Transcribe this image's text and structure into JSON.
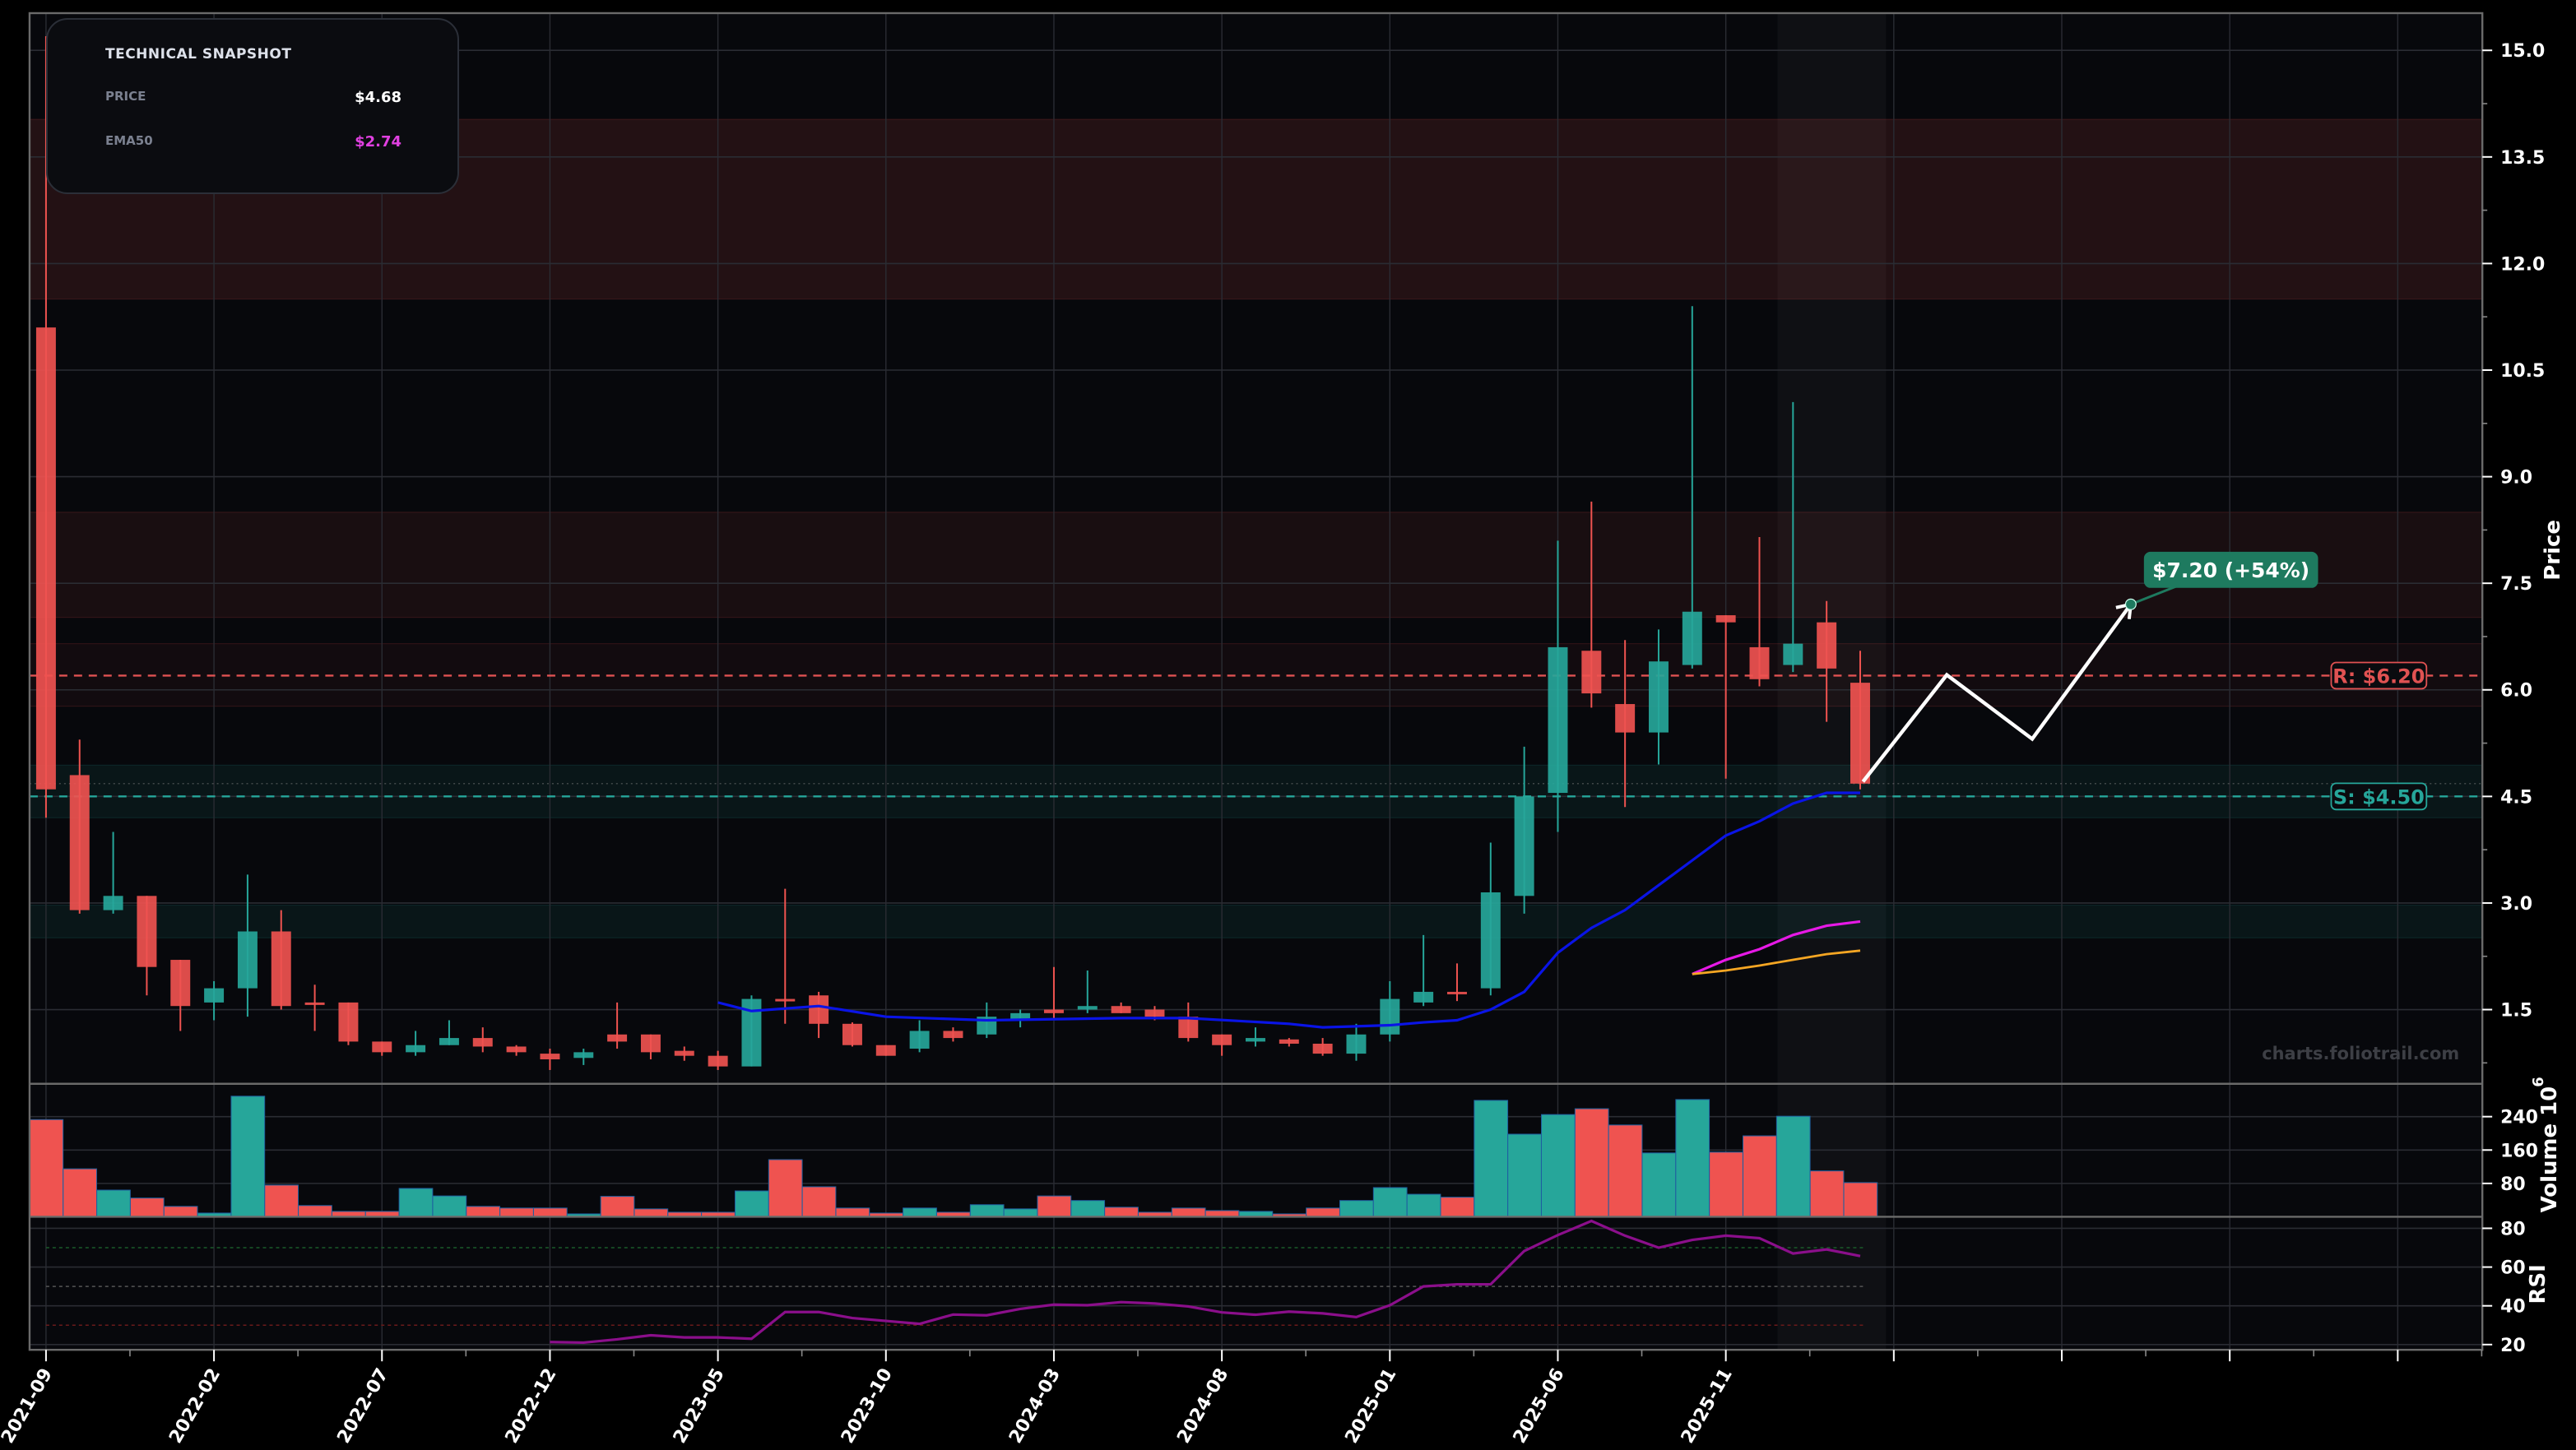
{
  "snapshot": {
    "title": "TECHNICAL SNAPSHOT",
    "rows": [
      {
        "label": "PRICE",
        "value": "$4.68",
        "color": "#ffffff"
      },
      {
        "label": "EMA50",
        "value": "$2.74",
        "color": "#e040e0"
      }
    ]
  },
  "watermark": "charts.foliotrail.com",
  "levels": {
    "resistance": {
      "label": "R: $6.20",
      "price": 6.2,
      "color": "#e05252"
    },
    "support": {
      "label": "S: $4.50",
      "price": 4.5,
      "color": "#26a69a"
    }
  },
  "target": {
    "label": "$7.20 (+54%)",
    "price": 7.2,
    "color": "#1e7a5f"
  },
  "axes": {
    "price_label": "Price",
    "volume_label": "Volume",
    "volume_exp": "10",
    "volume_exp_sup": "6",
    "rsi_label": "RSI",
    "price_ticks": [
      "15.0",
      "13.5",
      "12.0",
      "10.5",
      "9.0",
      "7.5",
      "6.0",
      "4.5",
      "3.0",
      "1.5"
    ],
    "volume_ticks": [
      "240",
      "160",
      "80"
    ],
    "rsi_ticks": [
      "80",
      "60",
      "40",
      "20"
    ],
    "x_ticks": [
      "2021-09",
      "2022-02",
      "2022-07",
      "2022-12",
      "2023-05",
      "2023-10",
      "2024-03",
      "2024-08",
      "2025-01",
      "2025-06",
      "2025-11"
    ]
  },
  "colors": {
    "up": "#26a69a",
    "down": "#ef5350",
    "ema_blue": "#0a14e6",
    "ema_magenta": "#e619e6",
    "ema_orange": "#f5a623",
    "rsi": "#8b0f8b",
    "background": "#07080c"
  },
  "chart_data": {
    "type": "candlestick",
    "title": "",
    "xlabel": "",
    "ylabel": "Price",
    "ylim": [
      0.47,
      15.53
    ],
    "grid": true,
    "categories": [
      "2021-09",
      "2021-10",
      "2021-11",
      "2021-12",
      "2022-01",
      "2022-02",
      "2022-03",
      "2022-04",
      "2022-05",
      "2022-06",
      "2022-07",
      "2022-08",
      "2022-09",
      "2022-10",
      "2022-11",
      "2022-12",
      "2023-01",
      "2023-02",
      "2023-03",
      "2023-04",
      "2023-05",
      "2023-06",
      "2023-07",
      "2023-08",
      "2023-09",
      "2023-10",
      "2023-11",
      "2023-12",
      "2024-01",
      "2024-02",
      "2024-03",
      "2024-04",
      "2024-05",
      "2024-06",
      "2024-07",
      "2024-08",
      "2024-09",
      "2024-10",
      "2024-11",
      "2024-12",
      "2025-01",
      "2025-02",
      "2025-03",
      "2025-04",
      "2025-05",
      "2025-06",
      "2025-07",
      "2025-08",
      "2025-09",
      "2025-10",
      "2025-11",
      "2025-12",
      "2026-01",
      "2026-02",
      "2026-03"
    ],
    "ohlc": [
      [
        11.1,
        15.2,
        4.2,
        4.6
      ],
      [
        4.8,
        5.3,
        2.85,
        2.9
      ],
      [
        2.9,
        4.0,
        2.85,
        3.1
      ],
      [
        3.1,
        3.1,
        1.7,
        2.1
      ],
      [
        2.2,
        2.2,
        1.2,
        1.55
      ],
      [
        1.6,
        1.9,
        1.35,
        1.8
      ],
      [
        1.8,
        3.4,
        1.4,
        2.6
      ],
      [
        2.6,
        2.9,
        1.5,
        1.55
      ],
      [
        1.6,
        1.85,
        1.2,
        1.58
      ],
      [
        1.6,
        1.6,
        1.0,
        1.05
      ],
      [
        1.05,
        1.05,
        0.85,
        0.9
      ],
      [
        0.9,
        1.2,
        0.85,
        1.0
      ],
      [
        1.0,
        1.35,
        1.0,
        1.1
      ],
      [
        1.1,
        1.25,
        0.9,
        0.98
      ],
      [
        0.98,
        1.0,
        0.85,
        0.9
      ],
      [
        0.88,
        0.95,
        0.65,
        0.8
      ],
      [
        0.82,
        0.95,
        0.72,
        0.9
      ],
      [
        1.15,
        1.6,
        0.95,
        1.05
      ],
      [
        1.15,
        1.15,
        0.8,
        0.9
      ],
      [
        0.92,
        0.98,
        0.78,
        0.85
      ],
      [
        0.85,
        0.92,
        0.65,
        0.7
      ],
      [
        0.7,
        1.7,
        0.7,
        1.65
      ],
      [
        1.65,
        3.2,
        1.3,
        1.62
      ],
      [
        1.7,
        1.75,
        1.1,
        1.3
      ],
      [
        1.3,
        1.32,
        0.98,
        1.0
      ],
      [
        1.0,
        1.0,
        0.85,
        0.85
      ],
      [
        0.95,
        1.35,
        0.9,
        1.2
      ],
      [
        1.2,
        1.25,
        1.05,
        1.1
      ],
      [
        1.15,
        1.6,
        1.1,
        1.4
      ],
      [
        1.35,
        1.5,
        1.25,
        1.45
      ],
      [
        1.5,
        2.1,
        1.35,
        1.45
      ],
      [
        1.5,
        2.05,
        1.45,
        1.55
      ],
      [
        1.55,
        1.6,
        1.45,
        1.45
      ],
      [
        1.5,
        1.55,
        1.35,
        1.4
      ],
      [
        1.4,
        1.6,
        1.05,
        1.1
      ],
      [
        1.15,
        1.15,
        0.85,
        1.0
      ],
      [
        1.05,
        1.25,
        0.98,
        1.1
      ],
      [
        1.08,
        1.1,
        0.98,
        1.02
      ],
      [
        1.02,
        1.1,
        0.85,
        0.88
      ],
      [
        0.88,
        1.3,
        0.78,
        1.15
      ],
      [
        1.15,
        1.9,
        1.05,
        1.65
      ],
      [
        1.6,
        2.55,
        1.55,
        1.75
      ],
      [
        1.75,
        2.15,
        1.62,
        1.72
      ],
      [
        1.8,
        3.85,
        1.7,
        3.15
      ],
      [
        3.1,
        5.2,
        2.85,
        4.5
      ],
      [
        4.55,
        8.1,
        4.0,
        6.6
      ],
      [
        6.55,
        8.65,
        5.75,
        5.95
      ],
      [
        5.8,
        6.7,
        4.35,
        5.4
      ],
      [
        5.4,
        6.85,
        4.95,
        6.4
      ],
      [
        6.35,
        11.4,
        6.3,
        7.1
      ],
      [
        7.05,
        7.05,
        4.75,
        6.95
      ],
      [
        6.6,
        8.15,
        6.05,
        6.15
      ],
      [
        6.35,
        10.05,
        6.25,
        6.65
      ],
      [
        6.95,
        7.25,
        5.55,
        6.3
      ],
      [
        6.1,
        6.55,
        4.6,
        4.68
      ]
    ],
    "volume": [
      233,
      115,
      64,
      45,
      25,
      9,
      289,
      76,
      27,
      13,
      13,
      68,
      50,
      25,
      21,
      21,
      7,
      49,
      19,
      11,
      11,
      62,
      137,
      72,
      21,
      9,
      21,
      11,
      29,
      19,
      50,
      39,
      23,
      11,
      21,
      15,
      13,
      7,
      21,
      39,
      70,
      54,
      47,
      279,
      198,
      245,
      259,
      220,
      153,
      281,
      155,
      194,
      241,
      110,
      82
    ],
    "rsi": [
      null,
      null,
      null,
      null,
      null,
      null,
      null,
      null,
      null,
      null,
      null,
      null,
      null,
      null,
      null,
      21.3,
      21.0,
      22.7,
      24.8,
      23.7,
      23.7,
      23.0,
      36.8,
      36.8,
      33.7,
      32.2,
      30.7,
      35.5,
      35.1,
      38.4,
      40.6,
      40.3,
      41.9,
      41.2,
      39.7,
      36.6,
      35.4,
      37.0,
      36.1,
      34.2,
      40.3,
      50.0,
      51.1,
      51.1,
      68.3,
      76.5,
      83.8,
      76.2,
      70.0,
      74.0,
      76.2,
      74.9,
      67.0,
      69.1,
      65.7
    ],
    "ema_blue": [
      [
        20,
        1.6
      ],
      [
        21,
        1.48
      ],
      [
        23,
        1.55
      ],
      [
        25,
        1.4
      ],
      [
        28,
        1.35
      ],
      [
        32,
        1.38
      ],
      [
        34,
        1.38
      ],
      [
        37,
        1.3
      ],
      [
        38,
        1.25
      ],
      [
        40,
        1.28
      ],
      [
        41,
        1.32
      ],
      [
        42,
        1.35
      ],
      [
        43,
        1.5
      ],
      [
        44,
        1.75
      ],
      [
        45,
        2.3
      ],
      [
        46,
        2.65
      ],
      [
        47,
        2.9
      ],
      [
        48,
        3.25
      ],
      [
        49,
        3.6
      ],
      [
        50,
        3.95
      ],
      [
        51,
        4.15
      ],
      [
        52,
        4.4
      ],
      [
        53,
        4.55
      ],
      [
        54,
        4.55
      ]
    ],
    "ema_magenta": [
      [
        49,
        2.0
      ],
      [
        50,
        2.2
      ],
      [
        51,
        2.35
      ],
      [
        52,
        2.55
      ],
      [
        53,
        2.68
      ],
      [
        54,
        2.74
      ]
    ],
    "ema_orange": [
      [
        49,
        2.0
      ],
      [
        50,
        2.05
      ],
      [
        51,
        2.12
      ],
      [
        52,
        2.2
      ],
      [
        53,
        2.28
      ],
      [
        54,
        2.33
      ]
    ],
    "zones": [
      {
        "from": 11.5,
        "to": 14.03,
        "kind": "resistance"
      },
      {
        "from": 7.02,
        "to": 8.5,
        "kind": "resistance"
      },
      {
        "from": 5.77,
        "to": 6.65,
        "kind": "resistance-light"
      },
      {
        "from": 4.2,
        "to": 4.94,
        "kind": "support"
      },
      {
        "from": 2.51,
        "to": 2.97,
        "kind": "support"
      }
    ],
    "projection": [
      [
        54,
        4.68
      ],
      [
        56.5,
        6.2
      ],
      [
        59,
        5.3
      ],
      [
        62,
        7.2
      ]
    ],
    "volume_ylim": [
      0,
      300
    ],
    "rsi_ylim": [
      18,
      86
    ],
    "rsi_levels": [
      70,
      50,
      30
    ]
  }
}
